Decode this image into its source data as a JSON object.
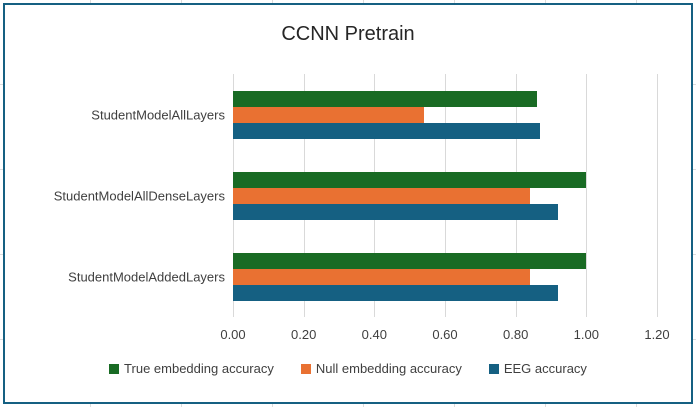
{
  "chart_data": {
    "type": "bar",
    "orientation": "horizontal",
    "title": "CCNN Pretrain",
    "categories": [
      "StudentModelAllLayers",
      "StudentModelAllDenseLayers",
      "StudentModelAddedLayers"
    ],
    "series": [
      {
        "name": "True embedding accuracy",
        "color": "#196B24",
        "values": [
          0.86,
          1.0,
          1.0
        ]
      },
      {
        "name": "Null embedding accuracy",
        "color": "#E97132",
        "values": [
          0.54,
          0.84,
          0.84
        ]
      },
      {
        "name": "EEG accuracy",
        "color": "#156082",
        "values": [
          0.87,
          0.92,
          0.92
        ]
      }
    ],
    "xlim": [
      0,
      1.2
    ],
    "xticks": [
      "0.00",
      "0.20",
      "0.40",
      "0.60",
      "0.80",
      "1.00",
      "1.20"
    ],
    "gridlines": "vertical",
    "gridline_color": "#D9D9D9",
    "legend_position": "bottom",
    "frame_border_color": "#156082"
  }
}
